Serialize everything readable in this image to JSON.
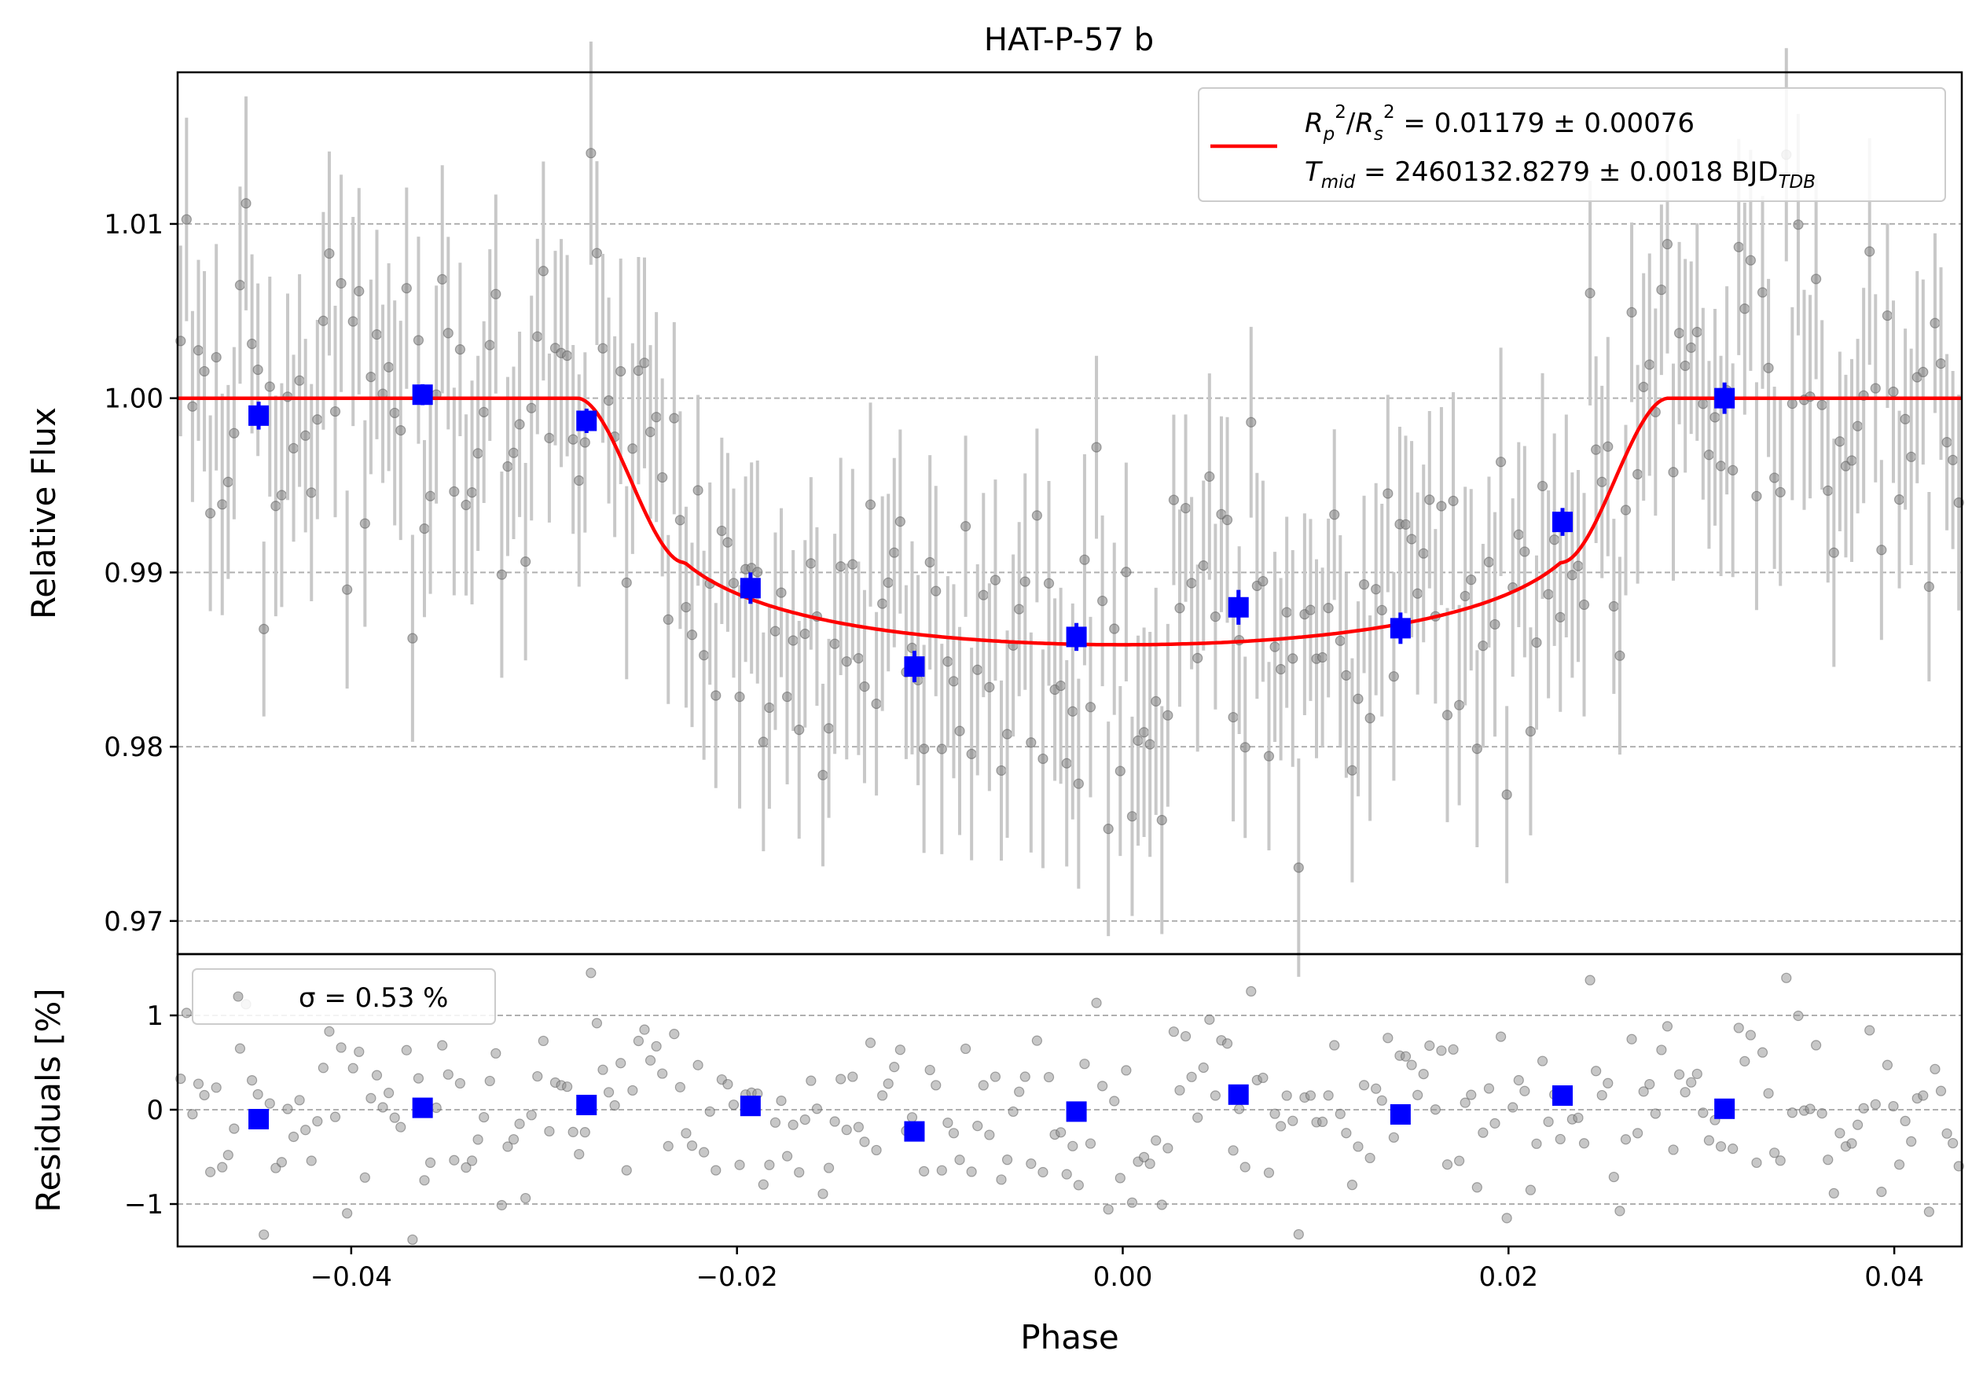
{
  "chart_data": [
    {
      "type": "scatter",
      "title": "HAT-P-57 b",
      "xlabel": "",
      "ylabel": "Relative Flux",
      "xlim": [
        -0.049,
        0.0435
      ],
      "ylim": [
        0.9681,
        1.0187
      ],
      "yticks": [
        0.97,
        0.98,
        0.99,
        1.0,
        1.01
      ],
      "ytick_labels": [
        "0.97",
        "0.98",
        "0.99",
        "1.00",
        "1.01"
      ],
      "grid": "horizontal dashed",
      "legend": {
        "placement": "top-right",
        "line1": "R_p^2/R_s^2 = 0.01179 ± 0.00076",
        "line2": "T_mid = 2460132.8279 ± 0.0018 BJD_TDB"
      },
      "model": {
        "name": "R_p^2/R_s^2 = 0.01179 ± 0.00076",
        "baseline": 1.0,
        "depth": 0.01179,
        "t1": -0.0283,
        "t2": -0.0227,
        "t3": 0.0227,
        "t4": 0.0283,
        "u1": 0.4,
        "u2": 0.2,
        "color": "#ff0000"
      },
      "binned": {
        "x": [
          -0.0448,
          -0.0363,
          -0.0278,
          -0.0193,
          -0.0108,
          -0.0024,
          0.006,
          0.0144,
          0.0228,
          0.0312
        ],
        "y": [
          0.999,
          1.0002,
          0.9987,
          0.9891,
          0.9846,
          0.9863,
          0.988,
          0.9868,
          0.9929,
          1.0
        ],
        "err": [
          0.0008,
          0.0006,
          0.0007,
          0.0009,
          0.0009,
          0.0008,
          0.001,
          0.0009,
          0.0008,
          0.0009
        ],
        "color": "#0000ff"
      },
      "raw_points": {
        "count": 300,
        "typical_error": 0.0057,
        "scatter_sigma": 0.0053,
        "color": "#808080"
      }
    },
    {
      "type": "scatter",
      "xlabel": "Phase",
      "ylabel": "Residuals [%]",
      "xlim": [
        -0.049,
        0.0435
      ],
      "ylim": [
        -1.45,
        1.65
      ],
      "xticks": [
        -0.04,
        -0.02,
        0.0,
        0.02,
        0.04
      ],
      "xtick_labels": [
        "−0.04",
        "−0.02",
        "0.00",
        "0.02",
        "0.04"
      ],
      "yticks": [
        -1,
        0,
        1
      ],
      "ytick_labels": [
        "−1",
        "0",
        "1"
      ],
      "grid": "horizontal dashed",
      "legend": {
        "placement": "top-left",
        "label": "σ = 0.53 %"
      },
      "binned_residuals": {
        "x": [
          -0.0448,
          -0.0363,
          -0.0278,
          -0.0193,
          -0.0108,
          -0.0024,
          0.006,
          0.0144,
          0.0228,
          0.0312
        ],
        "y": [
          -0.1,
          0.02,
          0.05,
          0.04,
          -0.23,
          -0.02,
          0.16,
          -0.05,
          0.15,
          0.01
        ]
      }
    }
  ]
}
